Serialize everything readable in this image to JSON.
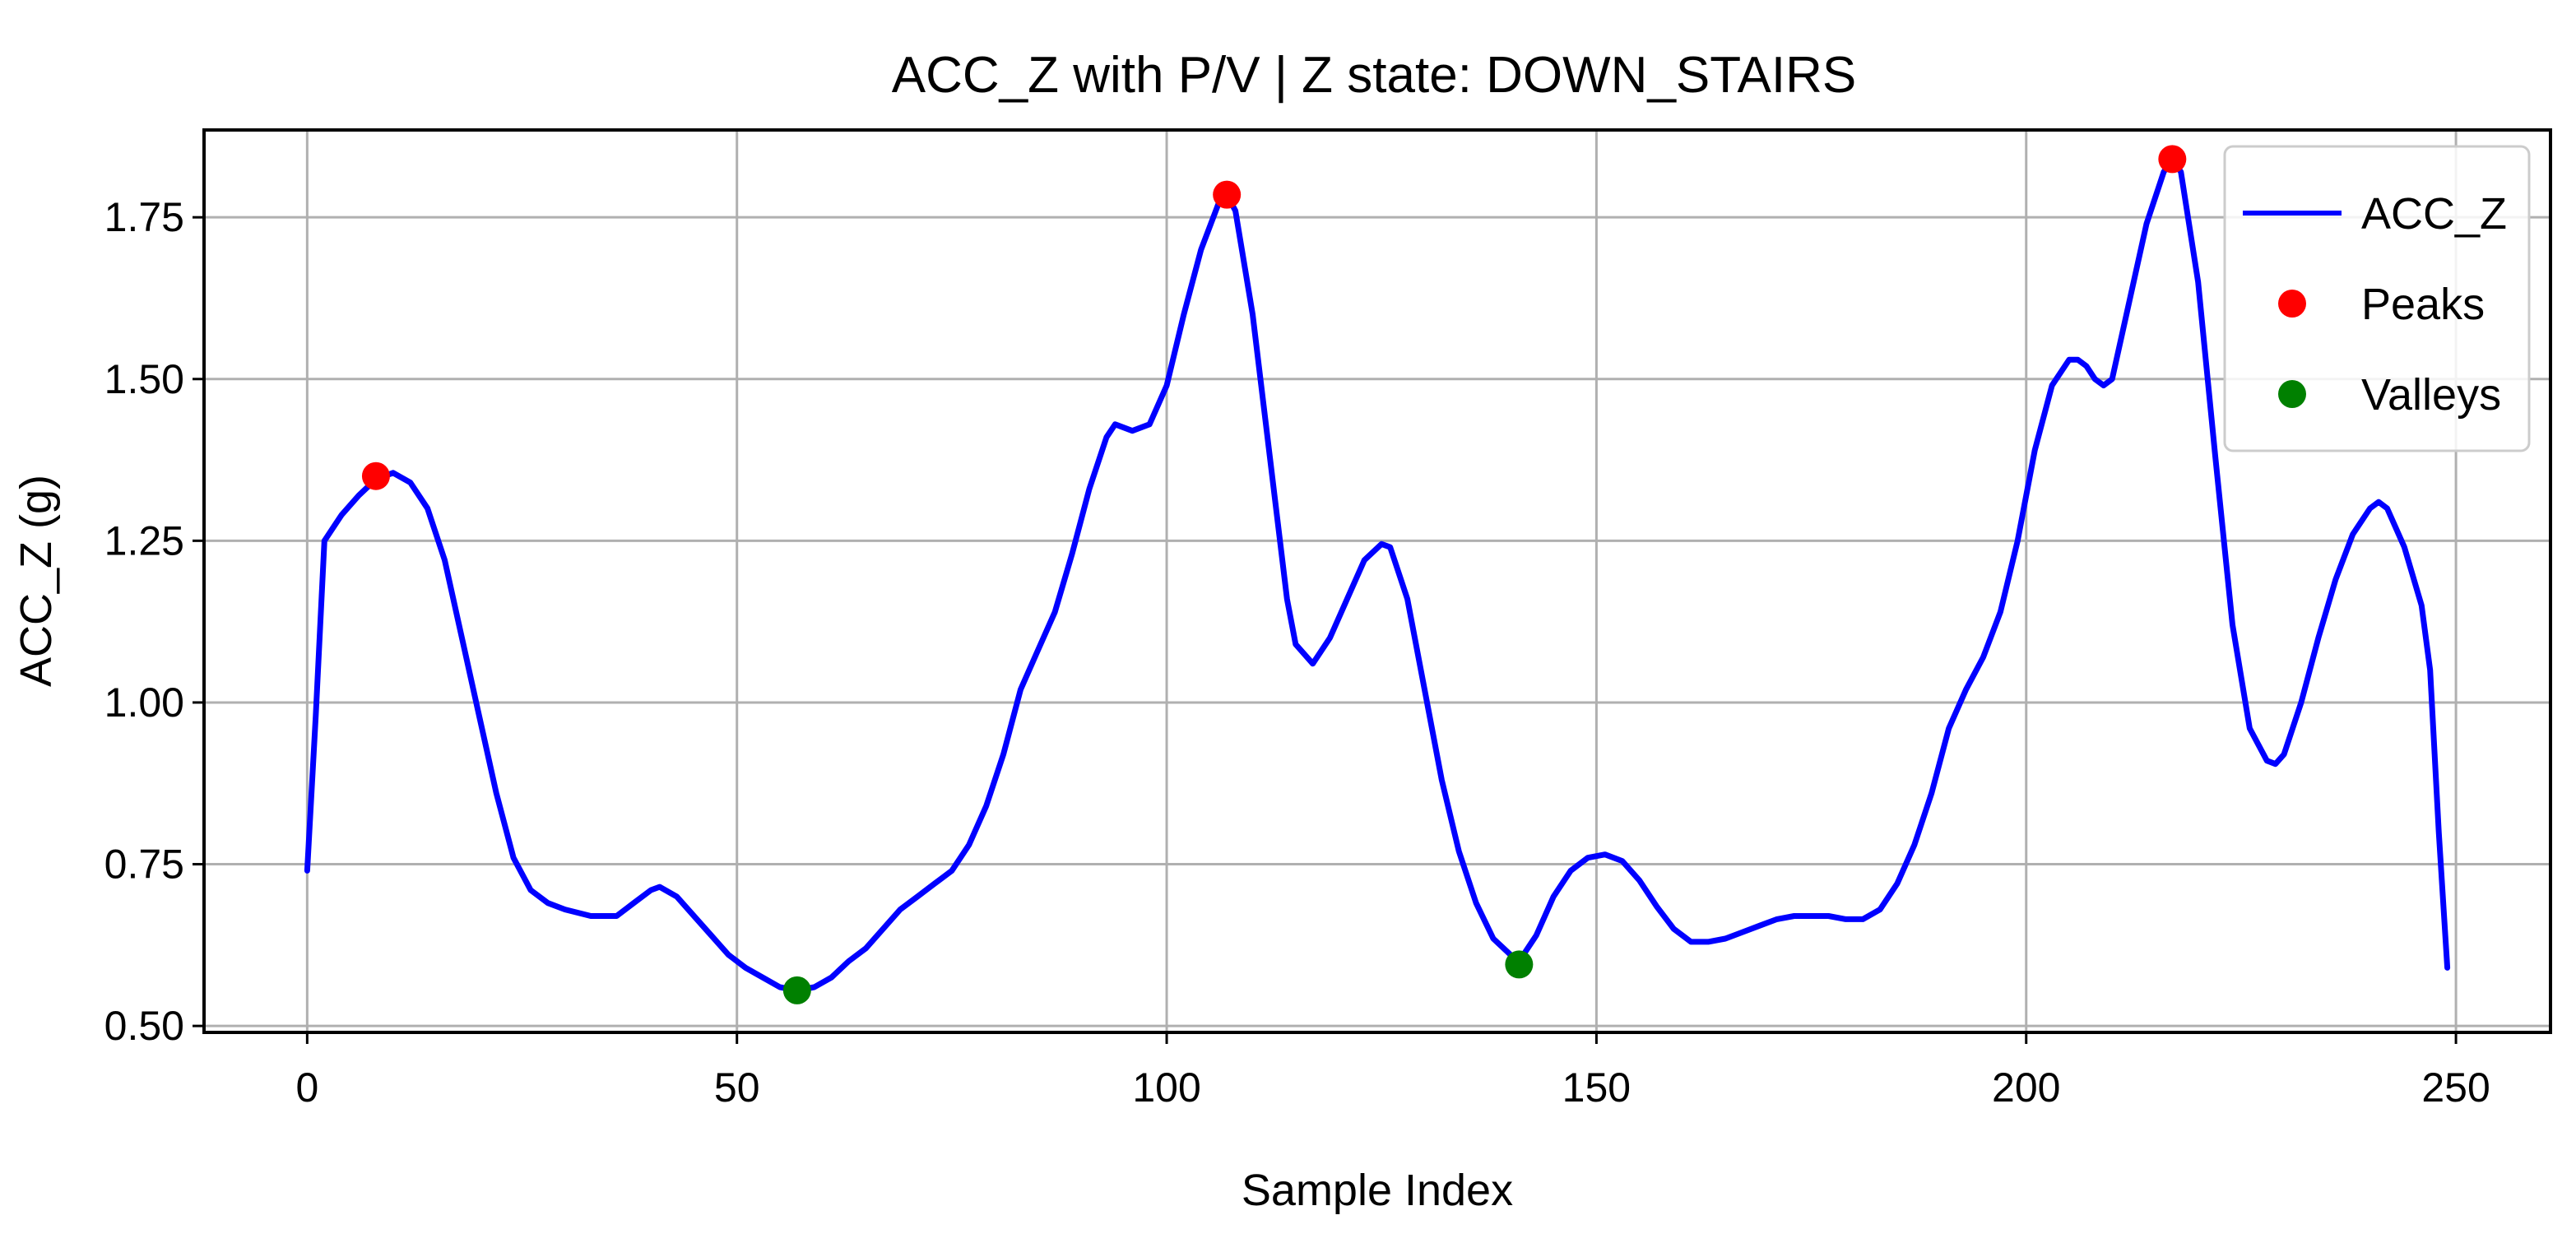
{
  "chart_data": {
    "type": "line",
    "title": "ACC_Z with P/V | Z state: DOWN_STAIRS",
    "xlabel": "Sample Index",
    "ylabel": "ACC_Z (g)",
    "xlim": [
      -12,
      261
    ],
    "ylim": [
      0.49,
      1.885
    ],
    "xticks": [
      0,
      50,
      100,
      150,
      200,
      250
    ],
    "yticks": [
      0.5,
      0.75,
      1.0,
      1.25,
      1.5,
      1.75
    ],
    "xtick_labels": [
      "0",
      "50",
      "100",
      "150",
      "200",
      "250"
    ],
    "ytick_labels": [
      "0.50",
      "0.75",
      "1.00",
      "1.25",
      "1.50",
      "1.75"
    ],
    "grid": true,
    "legend_position": "top-right",
    "colors": {
      "line": "#0000ff",
      "peaks": "#ff0000",
      "valleys": "#008000"
    },
    "series": [
      {
        "name": "ACC_Z",
        "style": "line",
        "x": [
          0,
          1,
          2,
          4,
          6,
          8,
          10,
          12,
          14,
          16,
          18,
          20,
          22,
          24,
          26,
          28,
          30,
          33,
          36,
          38,
          40,
          41,
          43,
          45,
          47,
          49,
          51,
          53,
          55,
          57,
          59,
          61,
          63,
          65,
          67,
          69,
          71,
          73,
          75,
          77,
          79,
          81,
          83,
          85,
          87,
          89,
          91,
          93,
          94,
          96,
          98,
          100,
          102,
          104,
          106,
          107,
          108,
          110,
          112,
          114,
          115,
          117,
          119,
          121,
          123,
          125,
          126,
          128,
          130,
          132,
          134,
          136,
          138,
          140,
          141,
          143,
          145,
          147,
          149,
          151,
          153,
          155,
          157,
          159,
          161,
          163,
          165,
          167,
          169,
          171,
          173,
          175,
          177,
          179,
          181,
          183,
          185,
          187,
          189,
          191,
          193,
          195,
          197,
          199,
          201,
          203,
          205,
          206,
          207,
          208,
          209,
          210,
          212,
          214,
          216,
          217,
          218,
          220,
          222,
          224,
          226,
          228,
          229,
          230,
          232,
          234,
          236,
          238,
          240,
          241,
          242,
          244,
          246,
          247,
          248,
          249
        ],
        "values": [
          0.74,
          0.98,
          1.25,
          1.29,
          1.32,
          1.345,
          1.355,
          1.34,
          1.3,
          1.22,
          1.1,
          0.98,
          0.86,
          0.76,
          0.71,
          0.69,
          0.68,
          0.67,
          0.67,
          0.69,
          0.71,
          0.715,
          0.7,
          0.67,
          0.64,
          0.61,
          0.59,
          0.575,
          0.56,
          0.555,
          0.56,
          0.575,
          0.6,
          0.62,
          0.65,
          0.68,
          0.7,
          0.72,
          0.74,
          0.78,
          0.84,
          0.92,
          1.02,
          1.08,
          1.14,
          1.23,
          1.33,
          1.41,
          1.43,
          1.42,
          1.43,
          1.49,
          1.6,
          1.7,
          1.77,
          1.785,
          1.76,
          1.6,
          1.38,
          1.16,
          1.09,
          1.06,
          1.1,
          1.16,
          1.22,
          1.245,
          1.24,
          1.16,
          1.02,
          0.88,
          0.77,
          0.69,
          0.635,
          0.61,
          0.6,
          0.64,
          0.7,
          0.74,
          0.76,
          0.765,
          0.755,
          0.725,
          0.685,
          0.65,
          0.63,
          0.63,
          0.635,
          0.645,
          0.655,
          0.665,
          0.67,
          0.67,
          0.67,
          0.665,
          0.665,
          0.68,
          0.72,
          0.78,
          0.86,
          0.96,
          1.02,
          1.07,
          1.14,
          1.25,
          1.39,
          1.49,
          1.53,
          1.53,
          1.52,
          1.5,
          1.49,
          1.5,
          1.62,
          1.74,
          1.82,
          1.84,
          1.82,
          1.65,
          1.38,
          1.12,
          0.96,
          0.91,
          0.905,
          0.92,
          1.0,
          1.1,
          1.19,
          1.26,
          1.3,
          1.31,
          1.3,
          1.24,
          1.15,
          1.05,
          0.8,
          0.59
        ]
      },
      {
        "name": "Peaks",
        "style": "markers",
        "x": [
          8,
          107,
          217
        ],
        "values": [
          1.35,
          1.785,
          1.84
        ]
      },
      {
        "name": "Valleys",
        "style": "markers",
        "x": [
          57,
          141
        ],
        "values": [
          0.555,
          0.595
        ]
      }
    ]
  }
}
